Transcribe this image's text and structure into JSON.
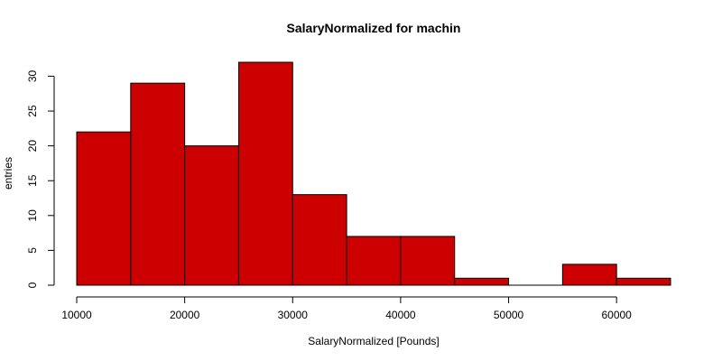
{
  "chart_data": {
    "type": "bar",
    "title": "SalaryNormalized for machin",
    "xlabel": "SalaryNormalized [Pounds]",
    "ylabel": "entries",
    "bins": [
      {
        "start": 10000,
        "end": 15000,
        "value": 22
      },
      {
        "start": 15000,
        "end": 20000,
        "value": 29
      },
      {
        "start": 20000,
        "end": 25000,
        "value": 20
      },
      {
        "start": 25000,
        "end": 30000,
        "value": 32
      },
      {
        "start": 30000,
        "end": 35000,
        "value": 13
      },
      {
        "start": 35000,
        "end": 40000,
        "value": 7
      },
      {
        "start": 40000,
        "end": 45000,
        "value": 7
      },
      {
        "start": 45000,
        "end": 50000,
        "value": 1
      },
      {
        "start": 50000,
        "end": 55000,
        "value": 0
      },
      {
        "start": 55000,
        "end": 60000,
        "value": 3
      },
      {
        "start": 60000,
        "end": 65000,
        "value": 1
      }
    ],
    "xlim": [
      10000,
      65000
    ],
    "ylim": [
      0,
      32
    ],
    "xticks": [
      10000,
      20000,
      30000,
      40000,
      50000,
      60000
    ],
    "yticks": [
      0,
      5,
      10,
      15,
      20,
      25,
      30
    ],
    "bar_color": "#cc0000",
    "grid": false,
    "legend": "none"
  }
}
